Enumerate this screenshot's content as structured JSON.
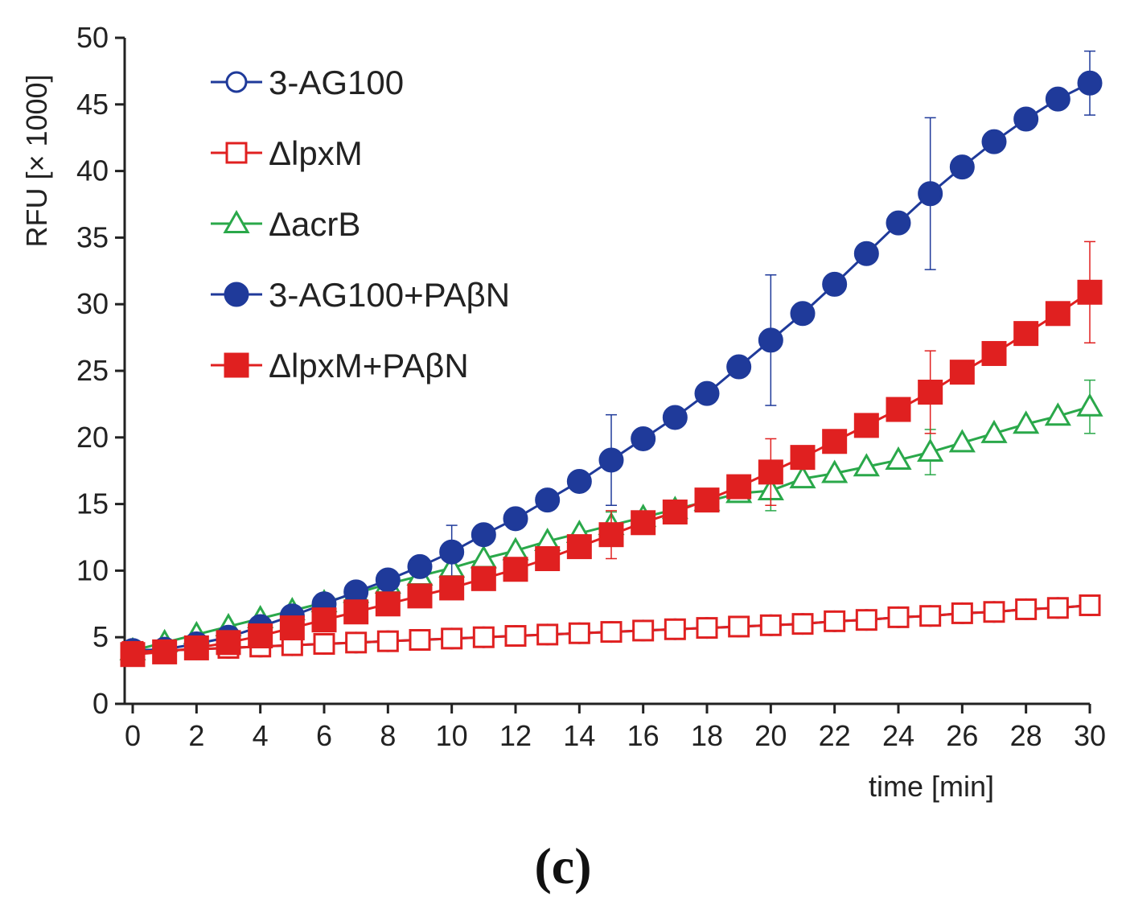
{
  "chart_data": {
    "type": "line",
    "xlabel": "time [min]",
    "ylabel": "RFU [× 1000]",
    "xlim": [
      0,
      30
    ],
    "ylim": [
      0,
      50
    ],
    "xticks": [
      "0",
      "2",
      "4",
      "6",
      "8",
      "10",
      "12",
      "14",
      "16",
      "18",
      "20",
      "22",
      "24",
      "26",
      "28",
      "30"
    ],
    "yticks": [
      "0",
      "5",
      "10",
      "15",
      "20",
      "25",
      "30",
      "35",
      "40",
      "45",
      "50"
    ],
    "grid": false,
    "legend_position": "top-left",
    "x": [
      0,
      1,
      2,
      3,
      4,
      5,
      6,
      7,
      8,
      9,
      10,
      11,
      12,
      13,
      14,
      15,
      16,
      17,
      18,
      19,
      20,
      21,
      22,
      23,
      24,
      25,
      26,
      27,
      28,
      29,
      30
    ],
    "series": [
      {
        "name": "3-AG100",
        "color": "#1f3a9a",
        "marker": "circle-open",
        "values": [
          4.0,
          4.0,
          4.1,
          4.2,
          4.3,
          4.4,
          4.5,
          4.6,
          4.7,
          4.8,
          4.9,
          5.0,
          5.1,
          5.2,
          5.3,
          5.4,
          5.5,
          5.6,
          5.7,
          5.8,
          5.9,
          6.0,
          6.2,
          6.3,
          6.5,
          6.6,
          6.8,
          6.9,
          7.1,
          7.2,
          7.4
        ],
        "errors": [
          0,
          0,
          0,
          0,
          0,
          0,
          0,
          0,
          0,
          0,
          0.3,
          0,
          0,
          0,
          0,
          0.3,
          0,
          0,
          0,
          0,
          0.3,
          0,
          0,
          0,
          0,
          0.5,
          0,
          0,
          0,
          0,
          0.5
        ]
      },
      {
        "name": "ΔlpxM",
        "color": "#e02020",
        "marker": "square-open",
        "values": [
          3.9,
          4.0,
          4.1,
          4.2,
          4.3,
          4.4,
          4.5,
          4.6,
          4.7,
          4.8,
          4.9,
          5.0,
          5.1,
          5.2,
          5.3,
          5.4,
          5.5,
          5.6,
          5.7,
          5.8,
          5.9,
          6.0,
          6.2,
          6.3,
          6.5,
          6.6,
          6.8,
          6.9,
          7.1,
          7.2,
          7.4
        ],
        "errors": [
          0,
          0,
          0,
          0,
          0,
          0,
          0,
          0,
          0,
          0,
          0.3,
          0,
          0,
          0,
          0,
          0.3,
          0,
          0,
          0,
          0,
          0.3,
          0,
          0,
          0,
          0,
          0.5,
          0,
          0,
          0,
          0,
          0.5
        ]
      },
      {
        "name": "ΔacrB",
        "color": "#2aa84a",
        "marker": "triangle-open",
        "values": [
          4.0,
          4.6,
          5.2,
          5.8,
          6.4,
          7.0,
          7.6,
          8.3,
          9.0,
          9.6,
          10.2,
          10.9,
          11.5,
          12.2,
          12.8,
          13.4,
          14.0,
          14.6,
          15.2,
          15.8,
          16.0,
          16.9,
          17.3,
          17.8,
          18.3,
          18.9,
          19.6,
          20.3,
          21.0,
          21.6,
          22.3
        ],
        "errors": [
          0,
          0,
          0,
          0,
          0,
          0,
          0,
          0,
          0,
          0,
          0.5,
          0,
          0,
          0,
          0,
          1.0,
          0,
          0,
          0,
          0,
          1.5,
          0,
          0,
          0,
          0,
          1.7,
          0,
          0,
          0,
          0,
          2.0
        ]
      },
      {
        "name": "3-AG100+PAβN",
        "color": "#1f3a9a",
        "marker": "circle-filled",
        "values": [
          4.0,
          4.1,
          4.5,
          5.0,
          5.8,
          6.6,
          7.5,
          8.4,
          9.3,
          10.3,
          11.4,
          12.7,
          13.9,
          15.3,
          16.7,
          18.3,
          19.9,
          21.5,
          23.3,
          25.3,
          27.3,
          29.3,
          31.5,
          33.8,
          36.1,
          38.3,
          40.3,
          42.2,
          43.9,
          45.4,
          46.6
        ],
        "errors": [
          0,
          0,
          0,
          0,
          0,
          0,
          0,
          0,
          0,
          0,
          2.0,
          0,
          0,
          0,
          0,
          3.4,
          0,
          0,
          0,
          0,
          4.9,
          0,
          0,
          0,
          0,
          5.7,
          0,
          0,
          0,
          0,
          2.4
        ]
      },
      {
        "name": "ΔlpxM+PAβN",
        "color": "#e02020",
        "marker": "square-filled",
        "values": [
          3.7,
          3.9,
          4.2,
          4.6,
          5.1,
          5.7,
          6.3,
          6.9,
          7.5,
          8.1,
          8.7,
          9.4,
          10.1,
          10.9,
          11.8,
          12.7,
          13.6,
          14.4,
          15.3,
          16.3,
          17.4,
          18.5,
          19.7,
          20.9,
          22.1,
          23.4,
          24.9,
          26.3,
          27.8,
          29.3,
          30.9
        ],
        "errors": [
          0,
          0,
          0,
          0,
          0,
          0,
          0,
          0,
          0,
          0,
          0.5,
          0,
          0,
          0,
          0,
          1.8,
          0,
          0,
          0,
          0,
          2.5,
          0,
          0,
          0,
          0,
          3.1,
          0,
          0,
          0,
          0,
          3.8
        ]
      }
    ]
  },
  "panel_label": "(c)"
}
